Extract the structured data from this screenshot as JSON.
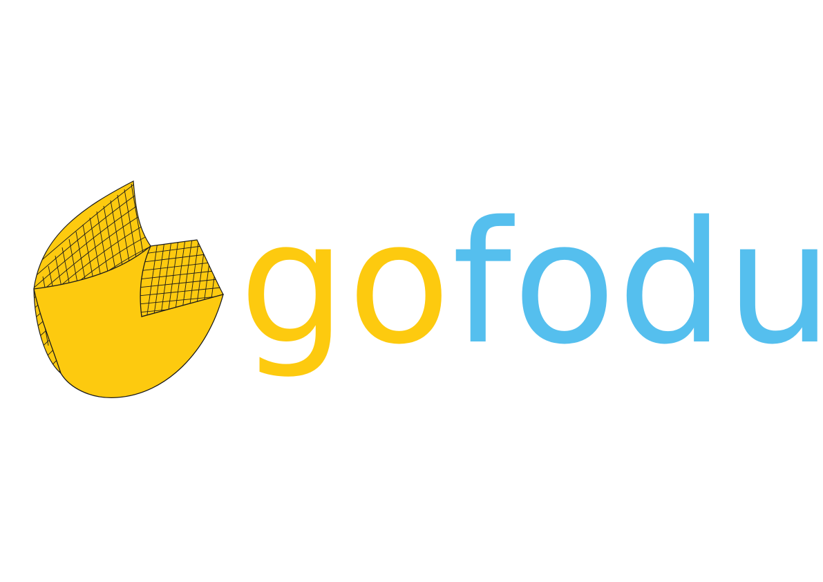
{
  "brand": {
    "name_part_1": "go",
    "name_part_2": "fodu",
    "colors": {
      "primary_yellow": "#fdca0f",
      "secondary_blue": "#55bfee",
      "outline": "#1a1a1a",
      "background": "#ffffff"
    },
    "icon": "cheese-wedge-icon"
  }
}
